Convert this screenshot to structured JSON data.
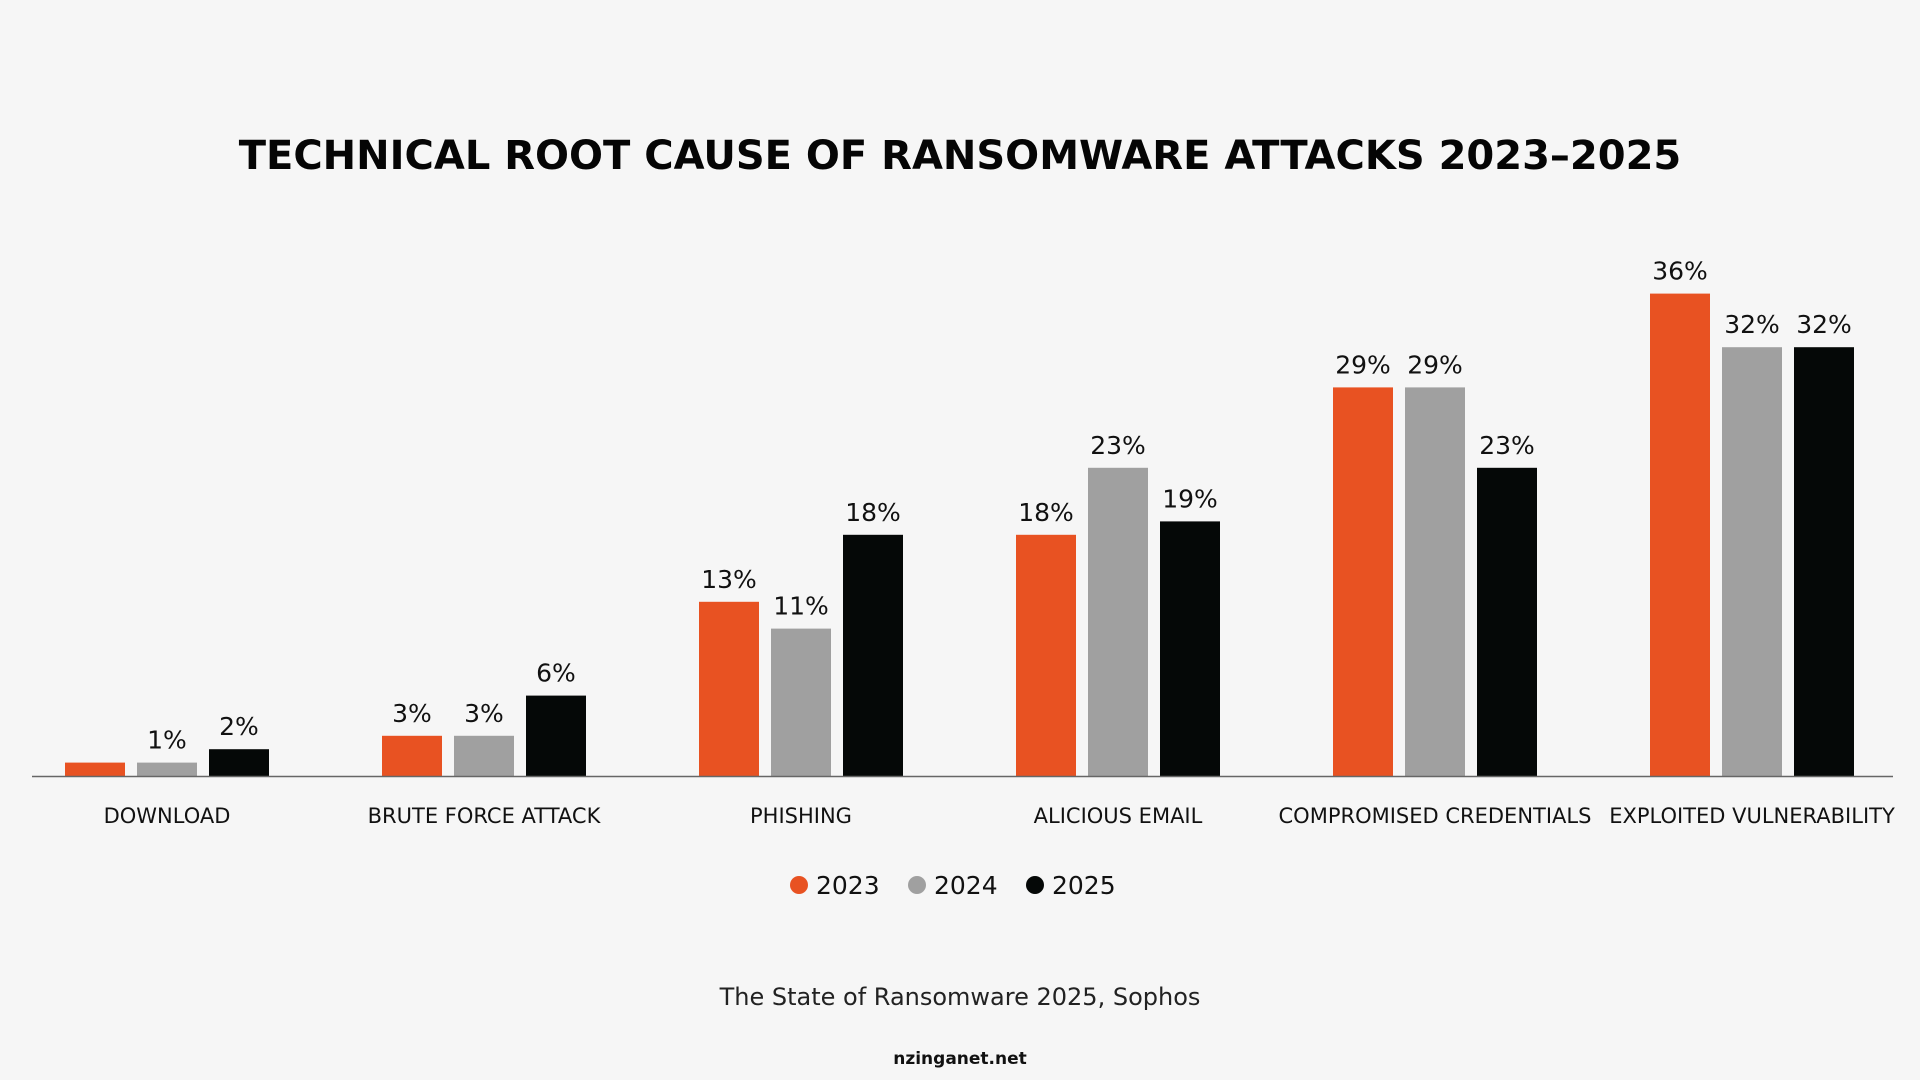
{
  "chart_data": {
    "type": "bar",
    "title": "TECHNICAL ROOT CAUSE OF RANSOMWARE ATTACKS 2023–2025",
    "categories": [
      "DOWNLOAD",
      "BRUTE FORCE ATTACK",
      "PHISHING",
      "ALICIOUS EMAIL",
      "COMPROMISED CREDENTIALS",
      "EXPLOITED VULNERABILITY"
    ],
    "series": [
      {
        "name": "2023",
        "color": "#e85222",
        "values": [
          null,
          3,
          13,
          18,
          29,
          36
        ],
        "labels": [
          "",
          "3%",
          "13%",
          "18%",
          "29%",
          "36%"
        ]
      },
      {
        "name": "2024",
        "color": "#a0a0a0",
        "values": [
          1,
          3,
          11,
          23,
          29,
          32
        ],
        "labels": [
          "1%",
          "3%",
          "11%",
          "23%",
          "29%",
          "32%"
        ]
      },
      {
        "name": "2025",
        "color": "#050807",
        "values": [
          2,
          6,
          18,
          19,
          23,
          32
        ],
        "labels": [
          "2%",
          "6%",
          "18%",
          "19%",
          "23%",
          "32%"
        ]
      }
    ],
    "unlabeled_values": {
      "2023": [
        1,
        null,
        null,
        null,
        null,
        null
      ]
    },
    "ylim": [
      0,
      36
    ],
    "grid": false,
    "legend": "bottom-center",
    "xlabel": "",
    "ylabel": ""
  },
  "source": "The State of Ransomware 2025, Sophos",
  "watermark": "nzinganet.net"
}
